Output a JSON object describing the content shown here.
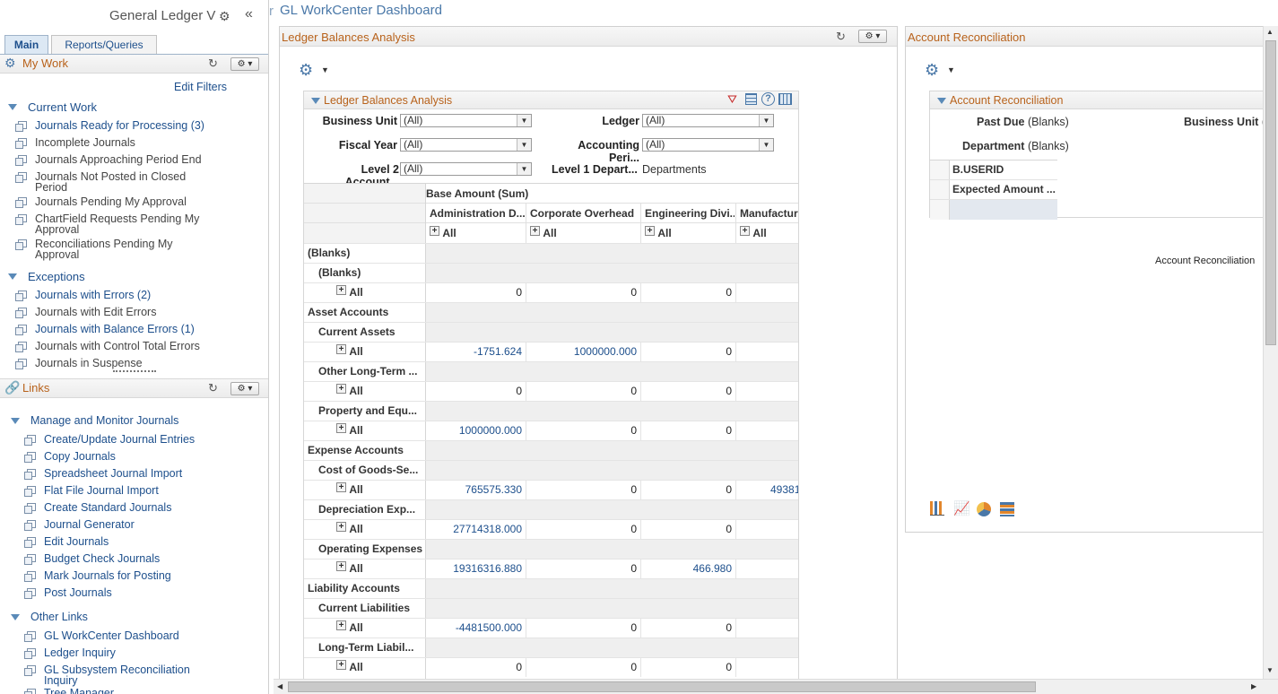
{
  "left": {
    "title": "General Ledger V",
    "tabs": [
      "Main",
      "Reports/Queries"
    ],
    "mywork_title": "My Work",
    "edit_filters": "Edit Filters",
    "current_work_title": "Current Work",
    "current_work": [
      {
        "label": "Journals Ready for Processing (3)",
        "link": true
      },
      {
        "label": "Incomplete Journals",
        "link": false
      },
      {
        "label": "Journals Approaching Period End",
        "link": false
      },
      {
        "label": "Journals Not Posted in Closed Period",
        "link": false
      },
      {
        "label": "Journals Pending My Approval",
        "link": false
      },
      {
        "label": "ChartField Requests Pending My Approval",
        "link": false
      },
      {
        "label": "Reconciliations Pending My Approval",
        "link": false
      }
    ],
    "exceptions_title": "Exceptions",
    "exceptions": [
      {
        "label": "Journals with Errors (2)",
        "link": true
      },
      {
        "label": "Journals with Edit Errors",
        "link": false
      },
      {
        "label": "Journals with Balance Errors (1)",
        "link": true
      },
      {
        "label": "Journals with Control Total Errors",
        "link": false
      },
      {
        "label": "Journals in Suspense",
        "link": false
      }
    ],
    "links_title": "Links",
    "manage_title": "Manage and Monitor Journals",
    "manage": [
      "Create/Update Journal Entries",
      "Copy Journals",
      "Spreadsheet Journal Import",
      "Flat File Journal Import",
      "Create Standard Journals",
      "Journal Generator",
      "Edit Journals",
      "Budget Check Journals",
      "Mark Journals for Posting",
      "Post Journals"
    ],
    "other_title": "Other Links",
    "other": [
      "GL WorkCenter Dashboard",
      "Ledger Inquiry",
      "GL Subsystem Reconciliation Inquiry",
      "Tree Manager"
    ]
  },
  "main": {
    "page_title": "GL WorkCenter Dashboard",
    "title_prefix": "r",
    "ledger_panel_title": "Ledger Balances Analysis",
    "ledger_inner_title": "Ledger Balances Analysis",
    "filters": {
      "business_unit_label": "Business Unit",
      "business_unit_value": "(All)",
      "ledger_label": "Ledger",
      "ledger_value": "(All)",
      "fiscal_year_label": "Fiscal Year",
      "fiscal_year_value": "(All)",
      "accounting_period_label": "Accounting Peri...",
      "accounting_period_value": "(All)",
      "level2_label": "Level 2 Account...",
      "level2_value": "(All)",
      "level1_label": "Level 1 Depart...",
      "level1_value": "Departments"
    },
    "grid": {
      "measure": "Base Amount (Sum)",
      "columns": [
        "Administration D...",
        "Corporate Overhead",
        "Engineering Divi...",
        "Manufactur"
      ],
      "all_label": "All",
      "rows": [
        {
          "label": "(Blanks)",
          "level": 0,
          "values": null
        },
        {
          "label": "(Blanks)",
          "level": 1,
          "values": null
        },
        {
          "label": "All",
          "level": 2,
          "values": [
            "0",
            "0",
            "0",
            ""
          ],
          "links": [
            false,
            false,
            false,
            false
          ]
        },
        {
          "label": "Asset Accounts",
          "level": 0,
          "values": null
        },
        {
          "label": "Current Assets",
          "level": 1,
          "values": null
        },
        {
          "label": "All",
          "level": 2,
          "values": [
            "-1751.624",
            "1000000.000",
            "0",
            ""
          ],
          "links": [
            true,
            true,
            false,
            false
          ]
        },
        {
          "label": "Other Long-Term ...",
          "level": 1,
          "values": null
        },
        {
          "label": "All",
          "level": 2,
          "values": [
            "0",
            "0",
            "0",
            ""
          ],
          "links": [
            false,
            false,
            false,
            false
          ]
        },
        {
          "label": "Property and Equ...",
          "level": 1,
          "values": null
        },
        {
          "label": "All",
          "level": 2,
          "values": [
            "1000000.000",
            "0",
            "0",
            ""
          ],
          "links": [
            true,
            false,
            false,
            false
          ]
        },
        {
          "label": "Expense Accounts",
          "level": 0,
          "values": null
        },
        {
          "label": "Cost of Goods-Se...",
          "level": 1,
          "values": null
        },
        {
          "label": "All",
          "level": 2,
          "values": [
            "765575.330",
            "0",
            "0",
            "49381"
          ],
          "links": [
            true,
            false,
            false,
            true
          ]
        },
        {
          "label": "Depreciation Exp...",
          "level": 1,
          "values": null
        },
        {
          "label": "All",
          "level": 2,
          "values": [
            "27714318.000",
            "0",
            "0",
            ""
          ],
          "links": [
            true,
            false,
            false,
            false
          ]
        },
        {
          "label": "Operating Expenses",
          "level": 1,
          "values": null
        },
        {
          "label": "All",
          "level": 2,
          "values": [
            "19316316.880",
            "0",
            "466.980",
            ""
          ],
          "links": [
            true,
            false,
            true,
            false
          ]
        },
        {
          "label": "Liability Accounts",
          "level": 0,
          "values": null
        },
        {
          "label": "Current Liabilities",
          "level": 1,
          "values": null
        },
        {
          "label": "All",
          "level": 2,
          "values": [
            "-4481500.000",
            "0",
            "0",
            ""
          ],
          "links": [
            true,
            false,
            false,
            false
          ]
        },
        {
          "label": "Long-Term Liabil...",
          "level": 1,
          "values": null
        },
        {
          "label": "All",
          "level": 2,
          "values": [
            "0",
            "0",
            "0",
            ""
          ],
          "links": [
            false,
            false,
            false,
            false
          ]
        }
      ]
    }
  },
  "recon": {
    "panel_title": "Account Reconciliation",
    "inner_title": "Account Reconciliation",
    "past_due_label": "Past Due",
    "past_due_value": "(Blanks)",
    "business_unit_label": "Business Unit",
    "business_unit_value": "(",
    "department_label": "Department",
    "department_value": "(Blanks)",
    "row1": "B.USERID",
    "row2": "Expected Amount ...",
    "chart_caption": "Account Reconciliation"
  },
  "colors": {
    "link": "#1d4f8c",
    "title": "#b8621b",
    "accent": "#5a8ab8"
  }
}
